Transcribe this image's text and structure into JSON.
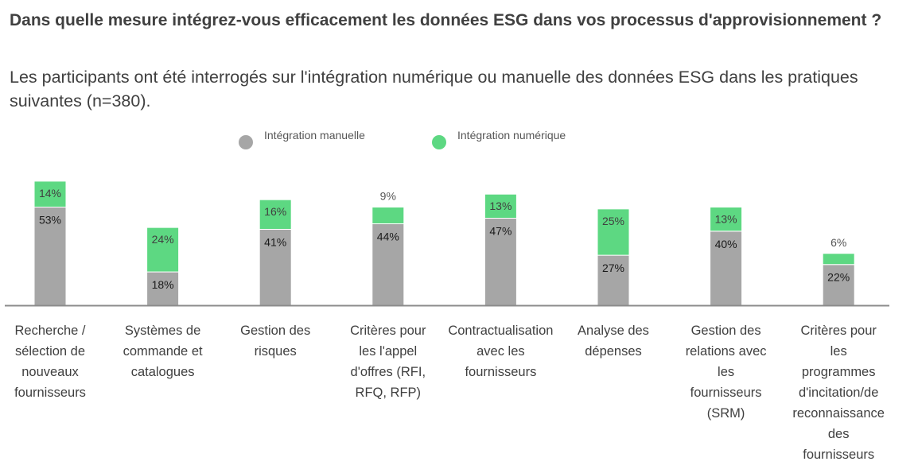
{
  "title": "Dans quelle mesure intégrez-vous efficacement les données ESG dans vos processus d'approvisionnement ?",
  "subtitle": "Les participants ont été interrogés sur l'intégration numérique ou manuelle des données ESG dans les pratiques suivantes (n=380).",
  "colors": {
    "manual": "#a6a6a6",
    "digital": "#5dd882",
    "axis": "#8c8c8c"
  },
  "chart_data": {
    "type": "bar",
    "stacked": true,
    "title": "Dans quelle mesure intégrez-vous efficacement les données ESG dans vos processus d'approvisionnement ?",
    "subtitle": "Les participants ont été interrogés sur l'intégration numérique ou manuelle des données ESG dans les pratiques suivantes (n=380).",
    "xlabel": "",
    "ylabel": "",
    "ylim": [
      0,
      67
    ],
    "grid": false,
    "legend_position": "top-center",
    "categories": [
      "Recherche / sélection de nouveaux fournisseurs",
      "Systèmes de commande et catalogues",
      "Gestion des risques",
      "Critères pour les l'appel d'offres (RFI, RFQ, RFP)",
      "Contractualisation avec les fournisseurs",
      "Analyse des dépenses",
      "Gestion des relations avec les fournisseurs (SRM)",
      "Critères pour les programmes d'incitation/de reconnaissance des fournisseurs"
    ],
    "category_lines": [
      [
        "Recherche /",
        "sélection de",
        "nouveaux",
        "fournisseurs"
      ],
      [
        "Systèmes de",
        "commande et",
        "catalogues"
      ],
      [
        "Gestion des",
        "risques"
      ],
      [
        "Critères pour",
        "les l'appel",
        "d'offres (RFI,",
        "RFQ, RFP)"
      ],
      [
        "Contractualisation",
        "avec les",
        "fournisseurs"
      ],
      [
        "Analyse des",
        "dépenses"
      ],
      [
        "Gestion des",
        "relations avec",
        "les",
        "fournisseurs",
        "(SRM)"
      ],
      [
        "Critères pour",
        "les",
        "programmes",
        "d'incitation/de",
        "reconnaissance",
        "des",
        "fournisseurs"
      ]
    ],
    "series": [
      {
        "name": "Intégration manuelle",
        "values": [
          53,
          18,
          41,
          44,
          47,
          27,
          40,
          22
        ],
        "labels": [
          "53%",
          "18%",
          "41%",
          "44%",
          "47%",
          "27%",
          "40%",
          "22%"
        ]
      },
      {
        "name": "Intégration numérique",
        "values": [
          14,
          24,
          16,
          9,
          13,
          25,
          13,
          6
        ],
        "labels": [
          "14%",
          "24%",
          "16%",
          "9%",
          "13%",
          "25%",
          "13%",
          "6%"
        ]
      }
    ]
  }
}
